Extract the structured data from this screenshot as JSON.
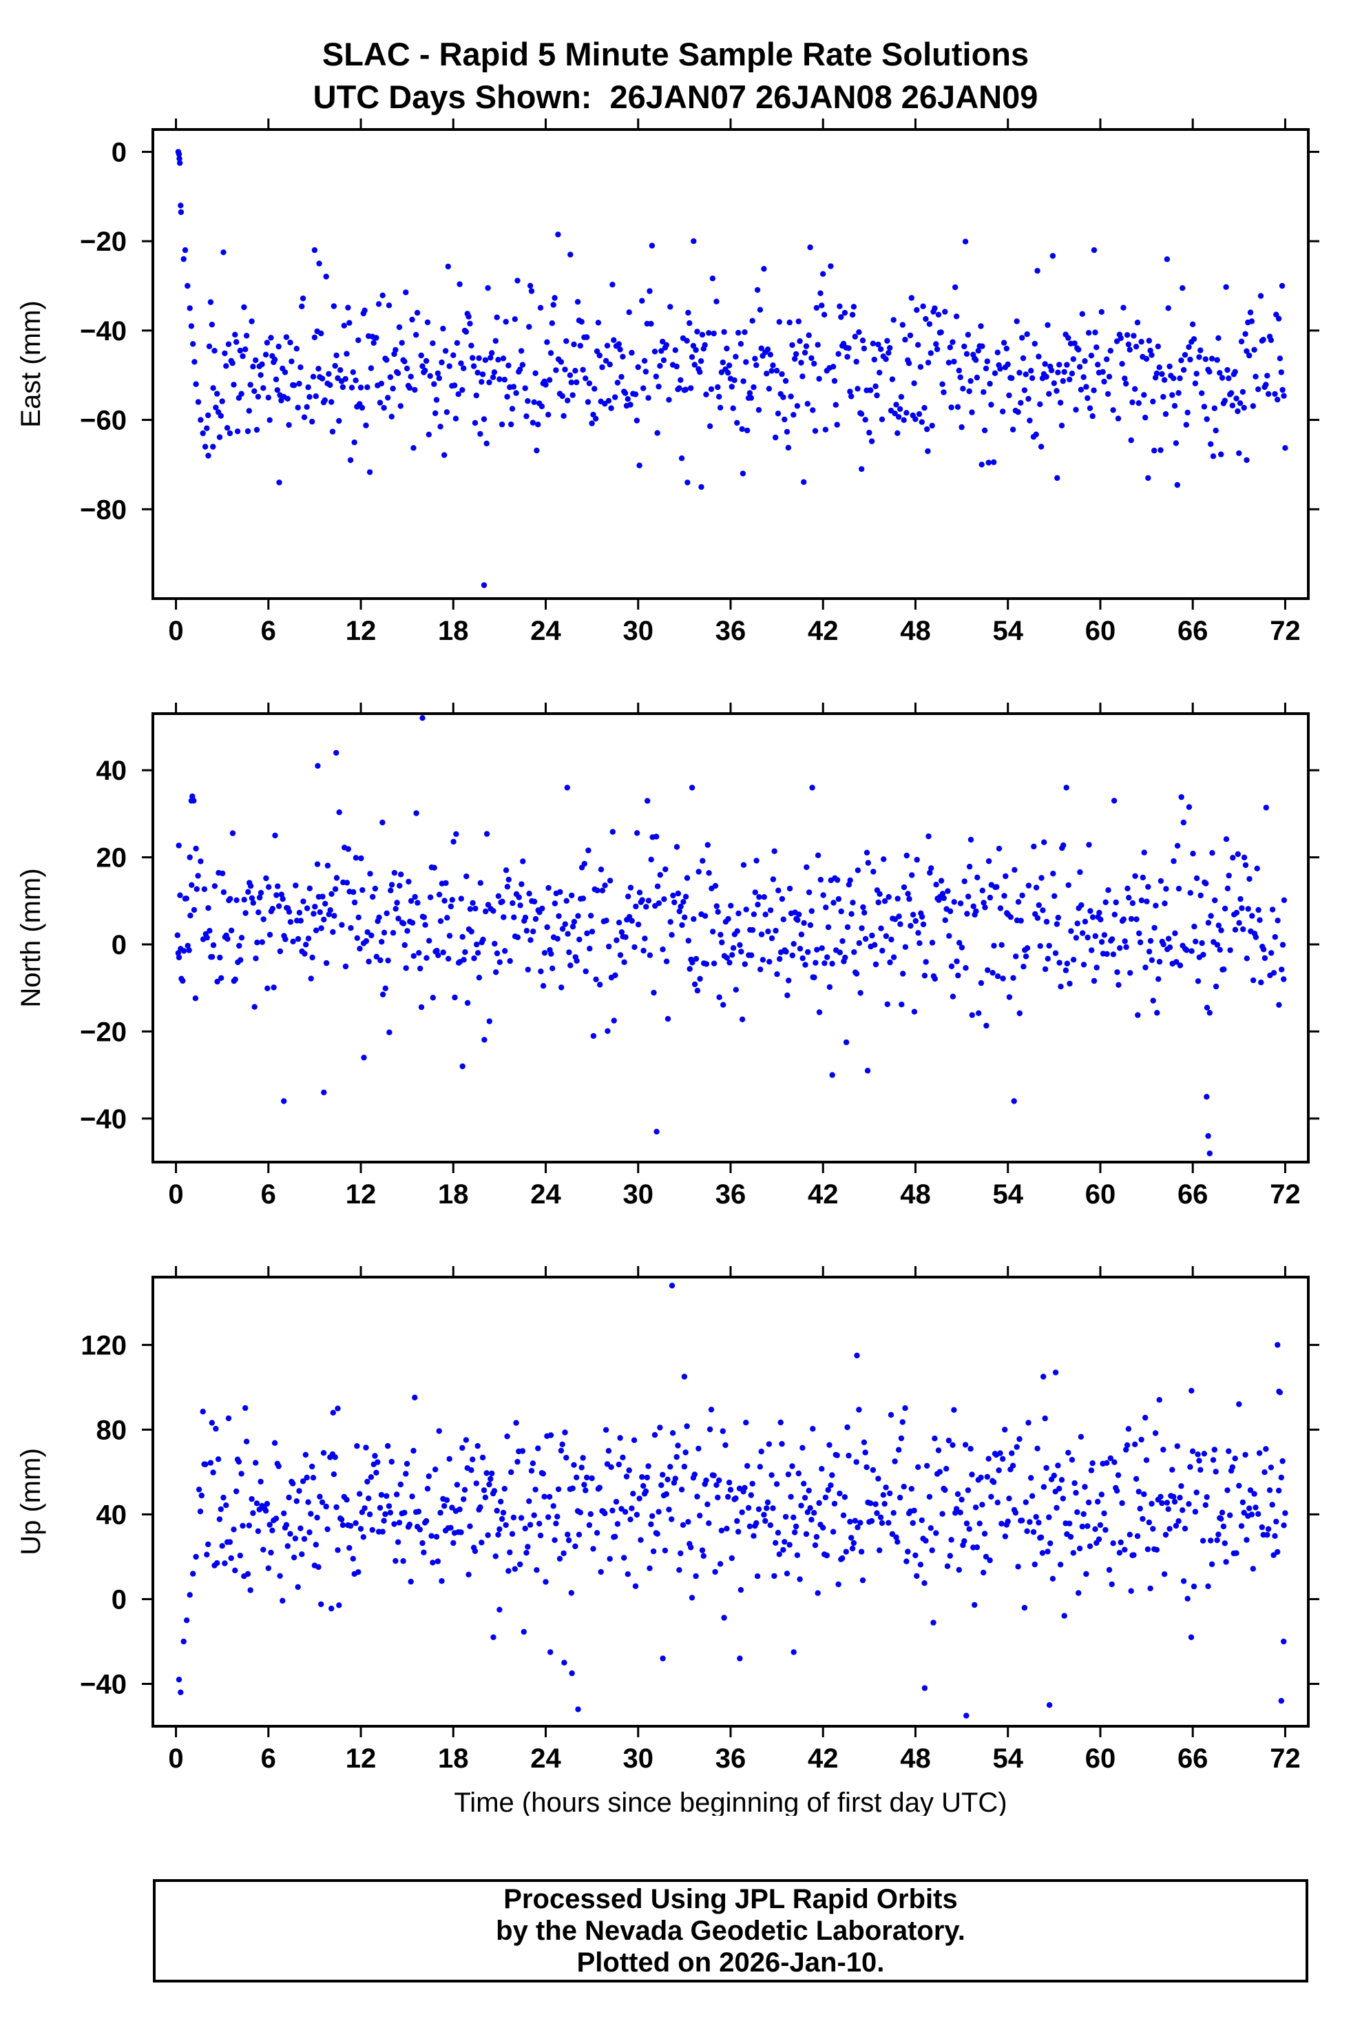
{
  "title": {
    "line1": "SLAC - Rapid 5 Minute Sample Rate Solutions",
    "line2": "UTC Days Shown:  26JAN07 26JAN08 26JAN09"
  },
  "footer": {
    "line1": "Processed Using JPL Rapid Orbits",
    "line2": "by the Nevada Geodetic Laboratory.",
    "line3": "Plotted on 2026-Jan-10."
  },
  "chart_data": {
    "type": "scatter",
    "title": "SLAC - Rapid 5 Minute Sample Rate Solutions",
    "subtitle": "UTC Days Shown:  26JAN07 26JAN08 26JAN09",
    "marker": {
      "color": "#0000EE",
      "radius": 4.2
    },
    "x_axis": {
      "label": "Time (hours since beginning of first day UTC)",
      "lim": [
        -1.5,
        73.5
      ],
      "ticks": [
        0,
        6,
        12,
        18,
        24,
        30,
        36,
        42,
        48,
        54,
        60,
        66,
        72
      ],
      "tick_labels": [
        "0",
        "6",
        "12",
        "18",
        "24",
        "30",
        "36",
        "42",
        "48",
        "54",
        "60",
        "66",
        "72"
      ]
    },
    "panels": [
      {
        "name": "east",
        "ylabel": "East (mm)",
        "ylim": [
          -100,
          5
        ],
        "yticks": [
          0,
          -20,
          -40,
          -60,
          -80
        ],
        "ytick_labels": [
          "0",
          "−20",
          "−40",
          "−60",
          "−80"
        ],
        "gen": {
          "seed": 71,
          "x_start": 2.0,
          "x_end": 72,
          "step": 0.08333,
          "dropout": 0.06,
          "mean": -49,
          "sd": 8.5,
          "clip": [
            -76,
            -20
          ]
        },
        "extra_points": [
          [
            0.15,
            0
          ],
          [
            0.2,
            -0.5
          ],
          [
            0.22,
            -1.5
          ],
          [
            0.25,
            -2.5
          ],
          [
            0.3,
            -12
          ],
          [
            0.33,
            -13.5
          ],
          [
            0.5,
            -24
          ],
          [
            0.6,
            -22
          ],
          [
            0.75,
            -30
          ],
          [
            0.9,
            -35
          ],
          [
            1.0,
            -39
          ],
          [
            1.1,
            -43
          ],
          [
            1.2,
            -47
          ],
          [
            1.3,
            -52
          ],
          [
            1.45,
            -56
          ],
          [
            1.6,
            -60
          ],
          [
            1.75,
            -63
          ],
          [
            1.9,
            -66
          ],
          [
            2.1,
            -68
          ],
          [
            2.4,
            -66
          ],
          [
            6.7,
            -74
          ],
          [
            9.0,
            -22
          ],
          [
            9.3,
            -25
          ],
          [
            20,
            -97
          ],
          [
            24.8,
            -18.5
          ],
          [
            25.6,
            -23
          ],
          [
            30.9,
            -21
          ],
          [
            33.2,
            -74
          ],
          [
            34.1,
            -75
          ],
          [
            33.6,
            -20
          ],
          [
            36.8,
            -72
          ],
          [
            44.5,
            -71
          ],
          [
            48.8,
            -67
          ],
          [
            52.3,
            -70
          ],
          [
            57.2,
            -73
          ],
          [
            59.6,
            -22
          ],
          [
            63.1,
            -73
          ],
          [
            69.5,
            -69
          ],
          [
            71.8,
            -30
          ]
        ]
      },
      {
        "name": "north",
        "ylabel": "North (mm)",
        "ylim": [
          -50,
          53
        ],
        "yticks": [
          40,
          20,
          0,
          -20,
          -40
        ],
        "ytick_labels": [
          "40",
          "20",
          "0",
          "−20",
          "−40"
        ],
        "gen": {
          "seed": 72,
          "x_start": 0.1,
          "x_end": 72,
          "step": 0.08333,
          "dropout": 0.06,
          "mean": 4.5,
          "sd": 9.5,
          "clip": [
            -28,
            37
          ]
        },
        "extra_points": [
          [
            0.15,
            -2
          ],
          [
            0.2,
            -3
          ],
          [
            0.3,
            -1
          ],
          [
            0.9,
            20
          ],
          [
            1.0,
            33
          ],
          [
            1.06,
            34
          ],
          [
            1.15,
            33
          ],
          [
            1.3,
            22
          ],
          [
            7.0,
            -36
          ],
          [
            9.2,
            41
          ],
          [
            9.6,
            -34
          ],
          [
            10.4,
            44
          ],
          [
            12.2,
            -26
          ],
          [
            13.4,
            28
          ],
          [
            16.0,
            52
          ],
          [
            18.6,
            -28
          ],
          [
            25.4,
            36
          ],
          [
            31.2,
            -43
          ],
          [
            33.5,
            36
          ],
          [
            41.3,
            36
          ],
          [
            42.6,
            -30
          ],
          [
            44.9,
            -29
          ],
          [
            54.4,
            -36
          ],
          [
            57.8,
            36
          ],
          [
            60.9,
            33
          ],
          [
            65.4,
            28
          ],
          [
            66.9,
            -35
          ],
          [
            67.0,
            -44
          ],
          [
            67.1,
            -48
          ],
          [
            71.9,
            -8
          ]
        ]
      },
      {
        "name": "up",
        "ylabel": "Up (mm)",
        "ylim": [
          -60,
          152
        ],
        "yticks": [
          120,
          80,
          40,
          0,
          -40
        ],
        "ytick_labels": [
          "120",
          "80",
          "40",
          "0",
          "−40"
        ],
        "gen": {
          "seed": 73,
          "x_start": 1.5,
          "x_end": 72,
          "step": 0.08333,
          "dropout": 0.06,
          "mean": 42,
          "sd": 20,
          "clip": [
            -24,
            104
          ]
        },
        "extra_points": [
          [
            0.2,
            -38
          ],
          [
            0.3,
            -44
          ],
          [
            0.5,
            -20
          ],
          [
            0.7,
            -10
          ],
          [
            0.9,
            2
          ],
          [
            1.1,
            12
          ],
          [
            1.3,
            20
          ],
          [
            10.2,
            88
          ],
          [
            10.5,
            90
          ],
          [
            20.6,
            -18
          ],
          [
            21.0,
            -5
          ],
          [
            24.3,
            -25
          ],
          [
            25.2,
            -30
          ],
          [
            25.7,
            -35
          ],
          [
            26.1,
            -52
          ],
          [
            31.6,
            -28
          ],
          [
            32.2,
            148
          ],
          [
            33.0,
            105
          ],
          [
            36.6,
            -28
          ],
          [
            40.1,
            -25
          ],
          [
            44.2,
            115
          ],
          [
            48.6,
            -42
          ],
          [
            51.3,
            -55
          ],
          [
            53.8,
            80
          ],
          [
            56.3,
            105
          ],
          [
            56.7,
            -50
          ],
          [
            57.1,
            107
          ],
          [
            65.9,
            -18
          ],
          [
            69.0,
            92
          ],
          [
            71.5,
            120
          ],
          [
            71.6,
            98
          ],
          [
            71.75,
            -48
          ],
          [
            71.9,
            -20
          ]
        ]
      }
    ]
  }
}
